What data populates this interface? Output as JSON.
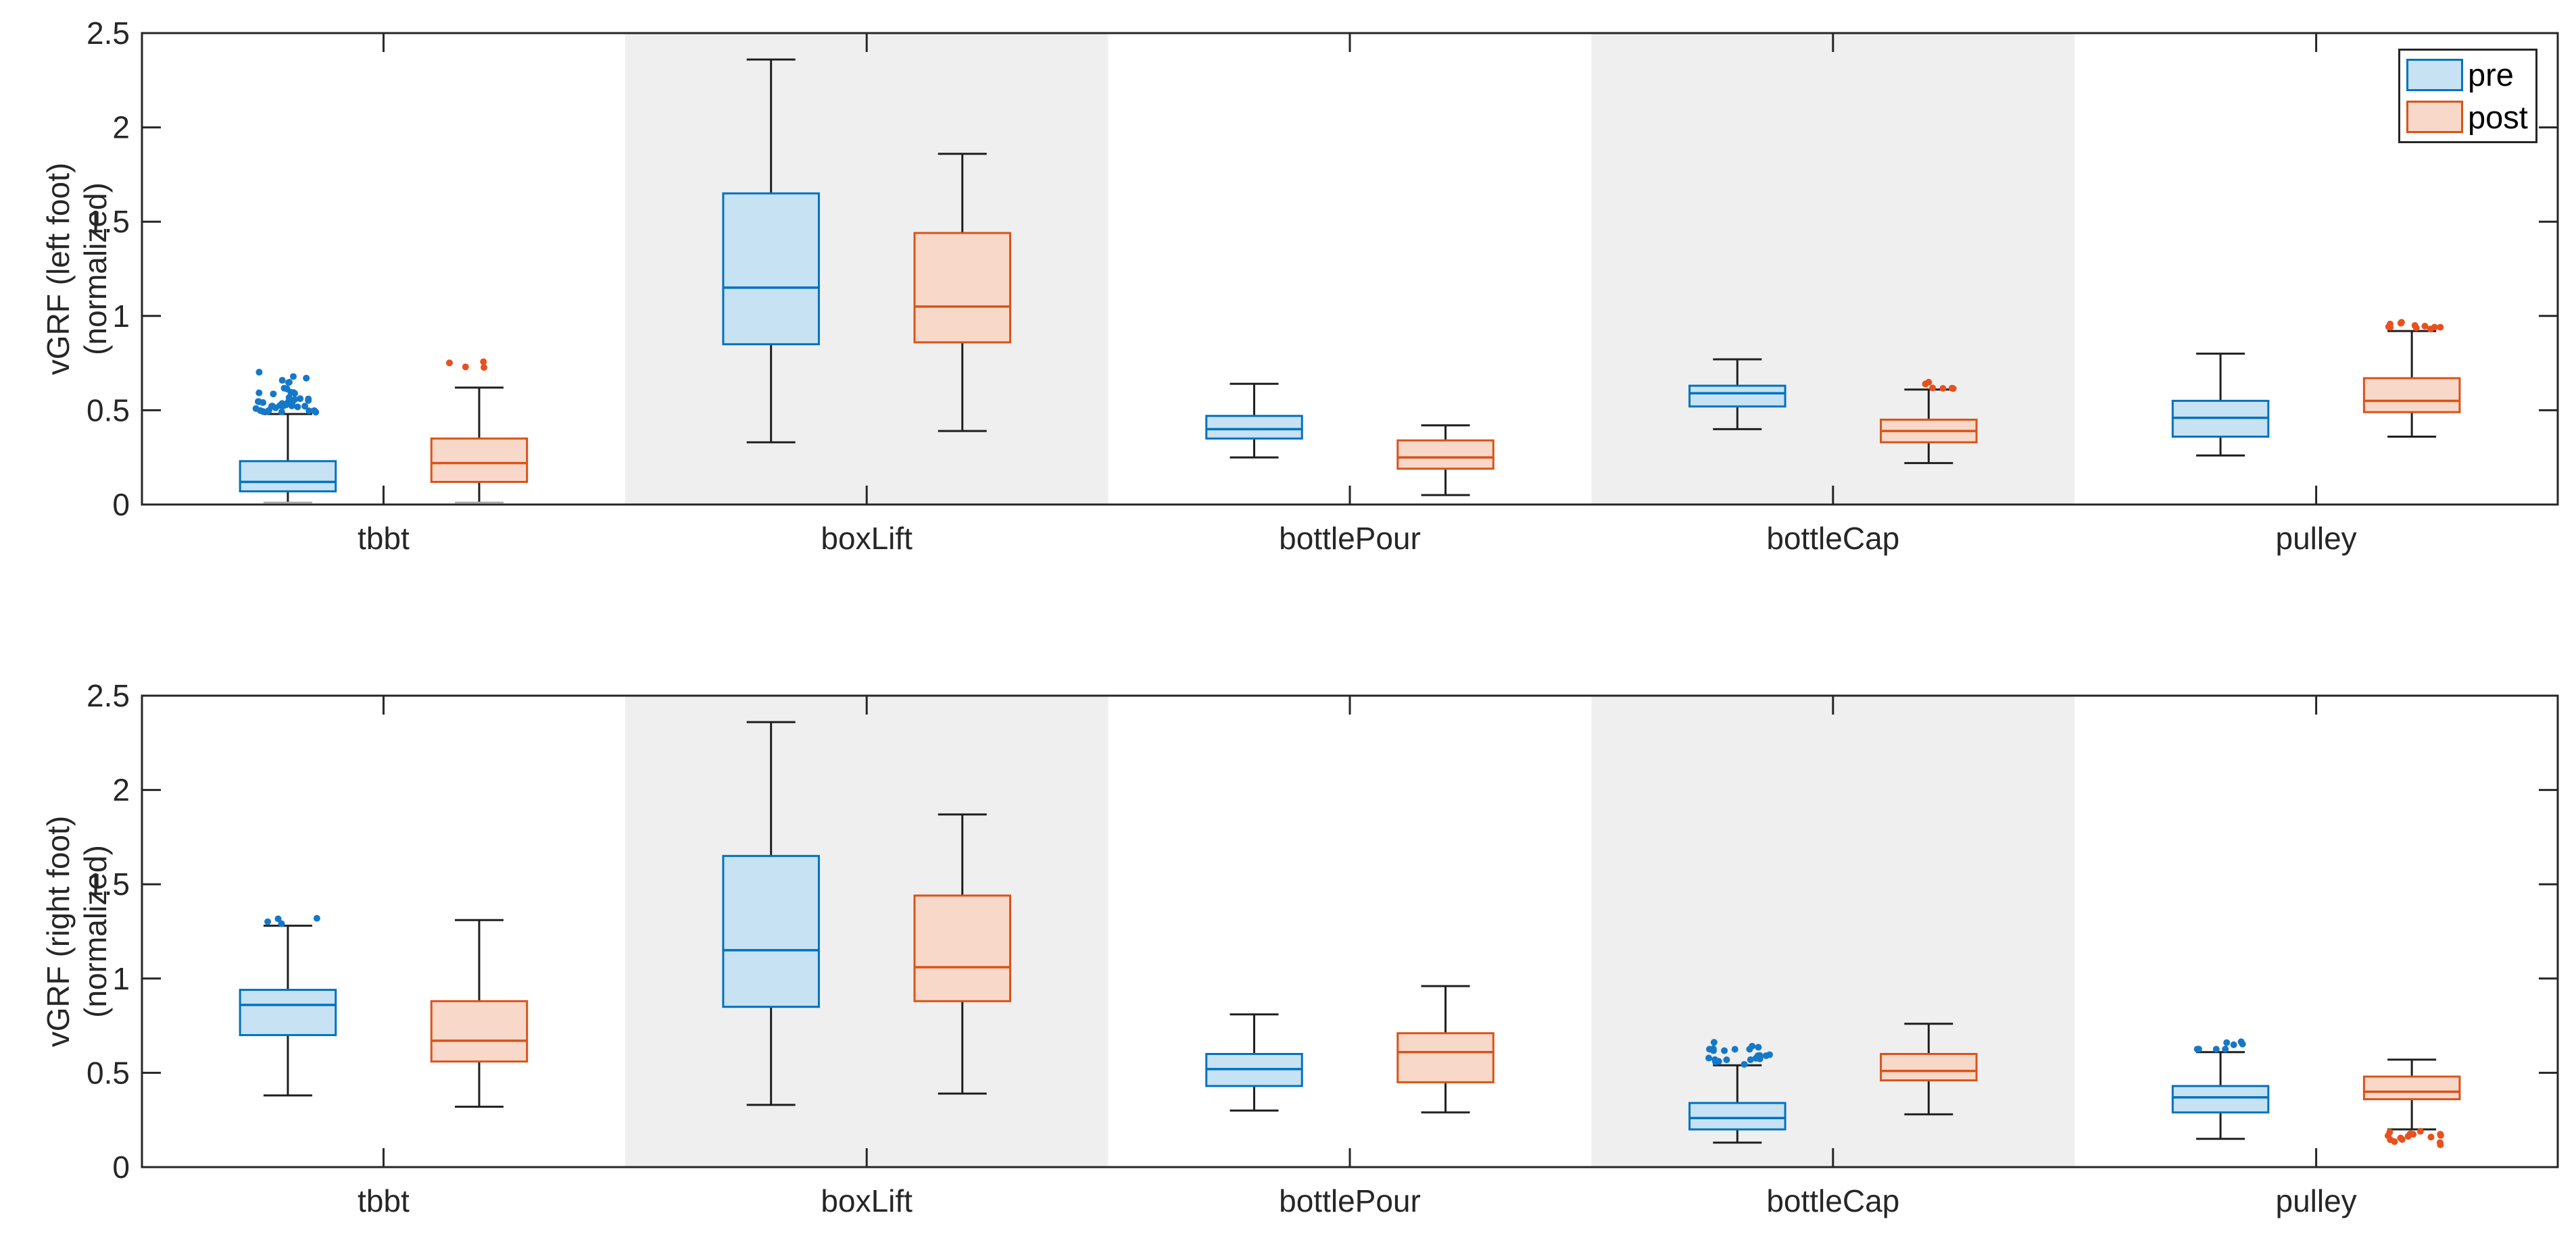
{
  "figure": {
    "background": "#ffffff"
  },
  "colors": {
    "pre_edge": "#0072BD",
    "pre_fill": "#C6E2F3",
    "pre_dot": "#1578C8",
    "post_edge": "#D95319",
    "post_fill": "#F8D9C9",
    "post_dot": "#E8501E",
    "band": "#EFEFEF",
    "axis": "#262626",
    "whisker": "#1F1F1F",
    "zero_cap": "#ABABAB"
  },
  "legend": {
    "items": [
      {
        "label": "pre"
      },
      {
        "label": "post"
      }
    ]
  },
  "chart_data": [
    {
      "type": "boxplot",
      "subplot": "top",
      "ylabel_line1": "vGRF (left foot)",
      "ylabel_line2": "(normalized)",
      "ylim": [
        0,
        2.5
      ],
      "yticks": [
        0,
        0.5,
        1,
        1.5,
        2,
        2.5
      ],
      "ytick_labels": [
        "0",
        "0.5",
        "1",
        "1.5",
        "2",
        "2.5"
      ],
      "categories": [
        "tbbt",
        "boxLift",
        "bottlePour",
        "bottleCap",
        "pulley"
      ],
      "shaded_category_indices": [
        1,
        3
      ],
      "grid": false,
      "legend_position": "top-right",
      "series": [
        {
          "name": "pre",
          "boxes": [
            {
              "whisker_low": 0.01,
              "q1": 0.07,
              "median": 0.12,
              "q3": 0.23,
              "whisker_high": 0.48,
              "outliers": {
                "count": 44,
                "range": [
                  0.49,
                  0.71
                ],
                "position": "above"
              }
            },
            {
              "whisker_low": 0.33,
              "q1": 0.85,
              "median": 1.15,
              "q3": 1.65,
              "whisker_high": 2.36,
              "outliers": null
            },
            {
              "whisker_low": 0.25,
              "q1": 0.35,
              "median": 0.4,
              "q3": 0.47,
              "whisker_high": 0.64,
              "outliers": null
            },
            {
              "whisker_low": 0.4,
              "q1": 0.52,
              "median": 0.59,
              "q3": 0.63,
              "whisker_high": 0.77,
              "outliers": null
            },
            {
              "whisker_low": 0.26,
              "q1": 0.36,
              "median": 0.46,
              "q3": 0.55,
              "whisker_high": 0.8,
              "outliers": null
            }
          ]
        },
        {
          "name": "post",
          "boxes": [
            {
              "whisker_low": 0.01,
              "q1": 0.12,
              "median": 0.22,
              "q3": 0.35,
              "whisker_high": 0.62,
              "outliers": {
                "count": 4,
                "range": [
                  0.71,
                  0.77
                ],
                "position": "above"
              }
            },
            {
              "whisker_low": 0.39,
              "q1": 0.86,
              "median": 1.05,
              "q3": 1.44,
              "whisker_high": 1.86,
              "outliers": null
            },
            {
              "whisker_low": 0.05,
              "q1": 0.19,
              "median": 0.25,
              "q3": 0.34,
              "whisker_high": 0.42,
              "outliers": null
            },
            {
              "whisker_low": 0.22,
              "q1": 0.33,
              "median": 0.39,
              "q3": 0.45,
              "whisker_high": 0.61,
              "outliers": {
                "count": 6,
                "range": [
                  0.615,
                  0.65
                ],
                "position": "above"
              }
            },
            {
              "whisker_low": 0.36,
              "q1": 0.49,
              "median": 0.55,
              "q3": 0.67,
              "whisker_high": 0.92,
              "outliers": {
                "count": 11,
                "range": [
                  0.93,
                  0.97
                ],
                "position": "above"
              }
            }
          ]
        }
      ]
    },
    {
      "type": "boxplot",
      "subplot": "bottom",
      "ylabel_line1": "vGRF (right foot)",
      "ylabel_line2": "(normalized)",
      "ylim": [
        0,
        2.5
      ],
      "yticks": [
        0,
        0.5,
        1,
        1.5,
        2,
        2.5
      ],
      "ytick_labels": [
        "0",
        "0.5",
        "1",
        "1.5",
        "2",
        "2.5"
      ],
      "categories": [
        "tbbt",
        "boxLift",
        "bottlePour",
        "bottleCap",
        "pulley"
      ],
      "shaded_category_indices": [
        1,
        3
      ],
      "grid": false,
      "legend_position": "none",
      "series": [
        {
          "name": "pre",
          "boxes": [
            {
              "whisker_low": 0.38,
              "q1": 0.7,
              "median": 0.86,
              "q3": 0.94,
              "whisker_high": 1.28,
              "outliers": {
                "count": 4,
                "range": [
                  1.29,
                  1.32
                ],
                "position": "above"
              }
            },
            {
              "whisker_low": 0.33,
              "q1": 0.85,
              "median": 1.15,
              "q3": 1.65,
              "whisker_high": 2.36,
              "outliers": null
            },
            {
              "whisker_low": 0.3,
              "q1": 0.43,
              "median": 0.52,
              "q3": 0.6,
              "whisker_high": 0.81,
              "outliers": null
            },
            {
              "whisker_low": 0.13,
              "q1": 0.2,
              "median": 0.26,
              "q3": 0.34,
              "whisker_high": 0.54,
              "outliers": {
                "count": 22,
                "range": [
                  0.545,
                  0.665
                ],
                "position": "above"
              }
            },
            {
              "whisker_low": 0.15,
              "q1": 0.29,
              "median": 0.37,
              "q3": 0.43,
              "whisker_high": 0.61,
              "outliers": {
                "count": 8,
                "range": [
                  0.625,
                  0.665
                ],
                "position": "above"
              }
            }
          ]
        },
        {
          "name": "post",
          "boxes": [
            {
              "whisker_low": 0.32,
              "q1": 0.56,
              "median": 0.67,
              "q3": 0.88,
              "whisker_high": 1.31,
              "outliers": null
            },
            {
              "whisker_low": 0.39,
              "q1": 0.88,
              "median": 1.06,
              "q3": 1.44,
              "whisker_high": 1.87,
              "outliers": null
            },
            {
              "whisker_low": 0.29,
              "q1": 0.45,
              "median": 0.61,
              "q3": 0.71,
              "whisker_high": 0.96,
              "outliers": null
            },
            {
              "whisker_low": 0.28,
              "q1": 0.46,
              "median": 0.51,
              "q3": 0.6,
              "whisker_high": 0.76,
              "outliers": null
            },
            {
              "whisker_low": 0.2,
              "q1": 0.36,
              "median": 0.4,
              "q3": 0.48,
              "whisker_high": 0.57,
              "outliers": {
                "count": 16,
                "range": [
                  0.105,
                  0.19
                ],
                "position": "below"
              }
            }
          ]
        }
      ]
    }
  ]
}
